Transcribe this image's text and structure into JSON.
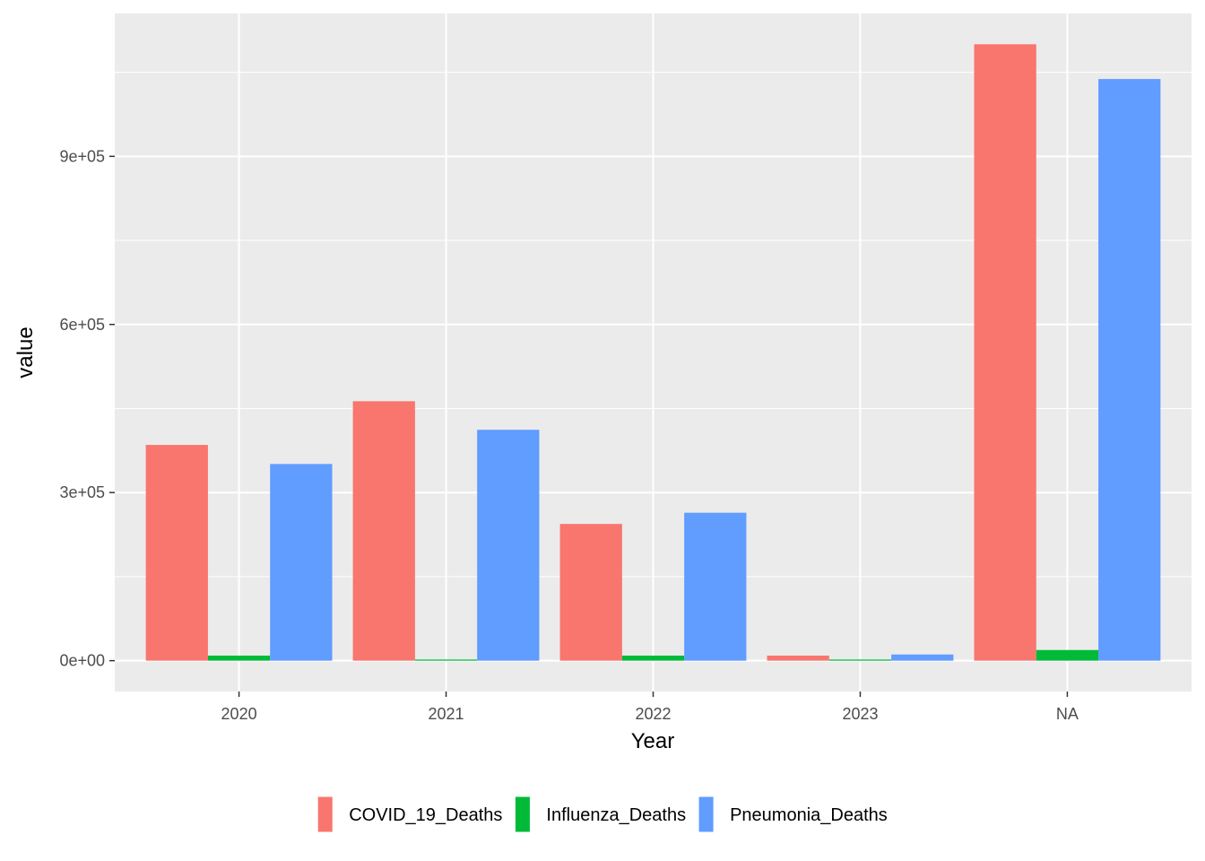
{
  "chart_data": {
    "type": "bar",
    "xlabel": "Year",
    "ylabel": "value",
    "categories": [
      "2020",
      "2021",
      "2022",
      "2023",
      "NA"
    ],
    "series": [
      {
        "name": "COVID_19_Deaths",
        "color": "#F8766D",
        "values": [
          385000,
          463000,
          244000,
          9000,
          1100000
        ]
      },
      {
        "name": "Influenza_Deaths",
        "color": "#00BA38",
        "values": [
          9000,
          2000,
          9000,
          2000,
          19000
        ]
      },
      {
        "name": "Pneumonia_Deaths",
        "color": "#619CFF",
        "values": [
          351000,
          412000,
          264000,
          11000,
          1038000
        ]
      }
    ],
    "ylim": [
      -55000,
      1155000
    ],
    "yticks": [
      {
        "value": 0,
        "label": "0e+00"
      },
      {
        "value": 300000,
        "label": "3e+05"
      },
      {
        "value": 600000,
        "label": "6e+05"
      },
      {
        "value": 900000,
        "label": "9e+05"
      }
    ],
    "y_minor_ticks": [
      150000,
      450000,
      750000,
      1050000
    ],
    "grid": true,
    "panel_background": "#EBEBEB",
    "legend_position": "bottom"
  }
}
